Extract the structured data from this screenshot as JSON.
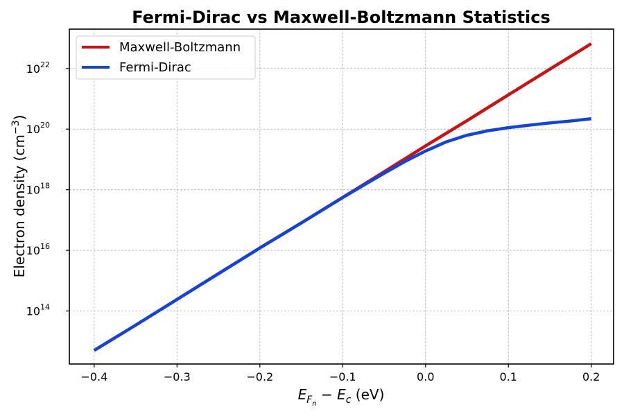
{
  "chart_data": {
    "type": "line",
    "title": "Fermi-Dirac vs Maxwell-Boltzmann Statistics",
    "xlabel": "E_{F_n} − E_c (eV)",
    "ylabel": "Electron density (cm⁻³)",
    "xlim": [
      -0.43,
      0.227
    ],
    "ylim_log10": [
      12.25,
      23.3
    ],
    "yscale": "log",
    "grid": true,
    "legend_position": "top-left",
    "x_ticks": [
      "−0.4",
      "−0.3",
      "−0.2",
      "−0.1",
      "0.0",
      "0.1",
      "0.2"
    ],
    "x_tick_values": [
      -0.4,
      -0.3,
      -0.2,
      -0.1,
      0.0,
      0.1,
      0.2
    ],
    "y_tick_exponents": [
      "14",
      "16",
      "18",
      "20",
      "22"
    ],
    "y_tick_base": "10",
    "series": [
      {
        "name": "Maxwell-Boltzmann",
        "color": "#cc1111",
        "x": [
          -0.4,
          -0.35,
          -0.3,
          -0.25,
          -0.2,
          -0.15,
          -0.1,
          -0.05,
          0.0,
          0.05,
          0.1,
          0.15,
          0.2
        ],
        "y": [
          5000000000000.0,
          34000000000000.0,
          240000000000000.0,
          1700000000000000.0,
          1.2e+16,
          8e+16,
          5.6e+17,
          3.9e+18,
          2.8e+19,
          1.9e+20,
          1.35e+21,
          9.5e+21,
          6.6e+22
        ]
      },
      {
        "name": "Fermi-Dirac",
        "color": "#1144dd",
        "x": [
          -0.4,
          -0.35,
          -0.3,
          -0.25,
          -0.2,
          -0.15,
          -0.1,
          -0.075,
          -0.05,
          -0.025,
          0.0,
          0.025,
          0.05,
          0.075,
          0.1,
          0.125,
          0.15,
          0.175,
          0.2
        ],
        "y": [
          5000000000000.0,
          34000000000000.0,
          240000000000000.0,
          1700000000000000.0,
          1.2e+16,
          8e+16,
          5.5e+17,
          1.4e+18,
          3.5e+18,
          8.5e+18,
          1.9e+19,
          3.8e+19,
          6.3e+19,
          8.8e+19,
          1.12e+20,
          1.35e+20,
          1.6e+20,
          1.85e+20,
          2.2e+20
        ]
      }
    ]
  }
}
